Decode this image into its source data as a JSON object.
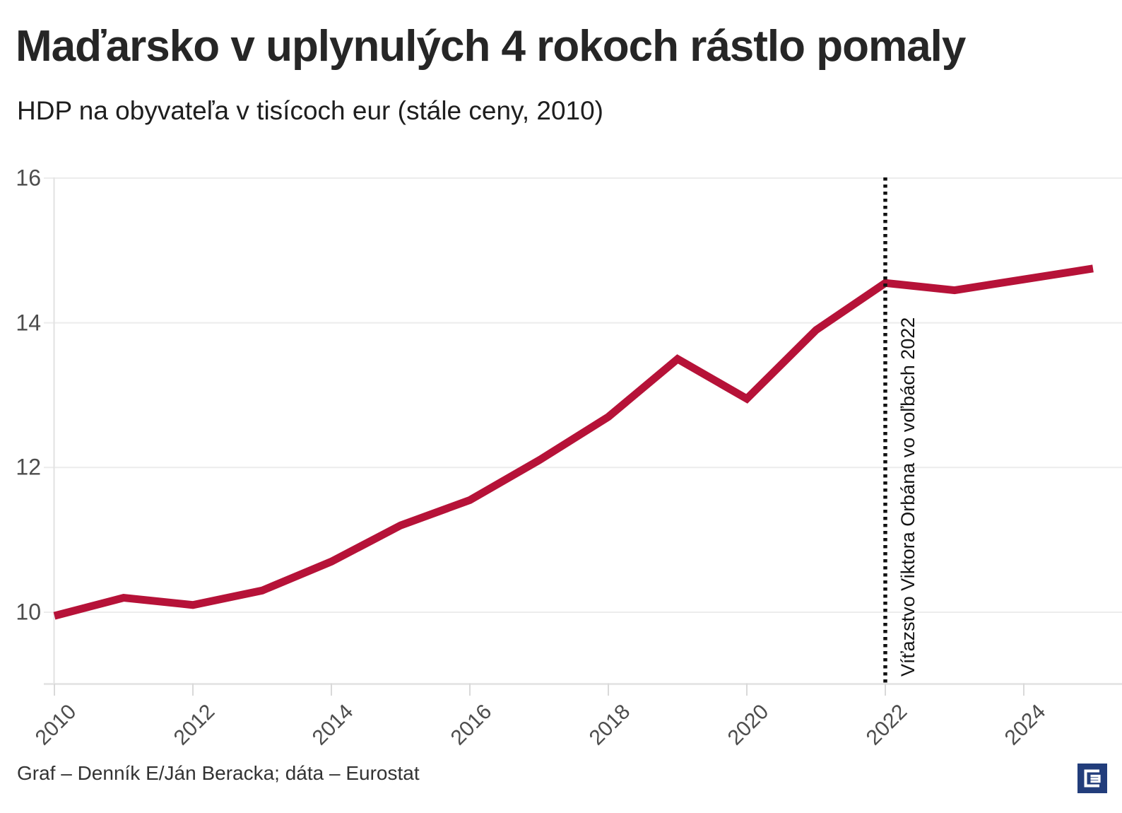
{
  "title": "Maďarsko v uplynulých 4 rokoch rástlo pomaly",
  "subtitle": "HDP na obyvateľa v tisícoch eur (stále ceny, 2010)",
  "annotation": {
    "text": "Víťazstvo Viktora Orbána vo voľbách 2022",
    "year": 2022,
    "line_color": "#111111"
  },
  "footer": {
    "credit": "Graf – Denník E/Ján Beracka; dáta – Eurostat"
  },
  "logo": {
    "name": "dennik-e-logo",
    "color": "#223D7B"
  },
  "chart_data": {
    "type": "line",
    "title": "Maďarsko v uplynulých 4 rokoch rástlo pomaly",
    "subtitle": "HDP na obyvateľa v tisícoch eur (stále ceny, 2010)",
    "x": [
      2010,
      2011,
      2012,
      2013,
      2014,
      2015,
      2016,
      2017,
      2018,
      2019,
      2020,
      2021,
      2022,
      2023,
      2024,
      2025
    ],
    "series": [
      {
        "name": "HDP na obyvateľa v tisícoch eur",
        "color": "#B61238",
        "values": [
          9.95,
          10.2,
          10.1,
          10.3,
          10.7,
          11.2,
          11.55,
          12.1,
          12.7,
          13.5,
          12.95,
          13.9,
          14.55,
          14.45,
          14.6,
          14.75
        ]
      }
    ],
    "xlabel": "",
    "ylabel": "",
    "xticks": [
      2010,
      2012,
      2014,
      2016,
      2018,
      2020,
      2022,
      2024
    ],
    "yticks": [
      10,
      12,
      14,
      16
    ],
    "ylim": [
      9,
      16
    ],
    "xlim": [
      2010,
      2025.4
    ],
    "grid": "horizontal",
    "legend": "none",
    "event_line": {
      "x": 2022,
      "style": "dotted",
      "color": "#111111"
    },
    "grid_color": "#ececec",
    "axis_color": "#e2e2e2"
  }
}
